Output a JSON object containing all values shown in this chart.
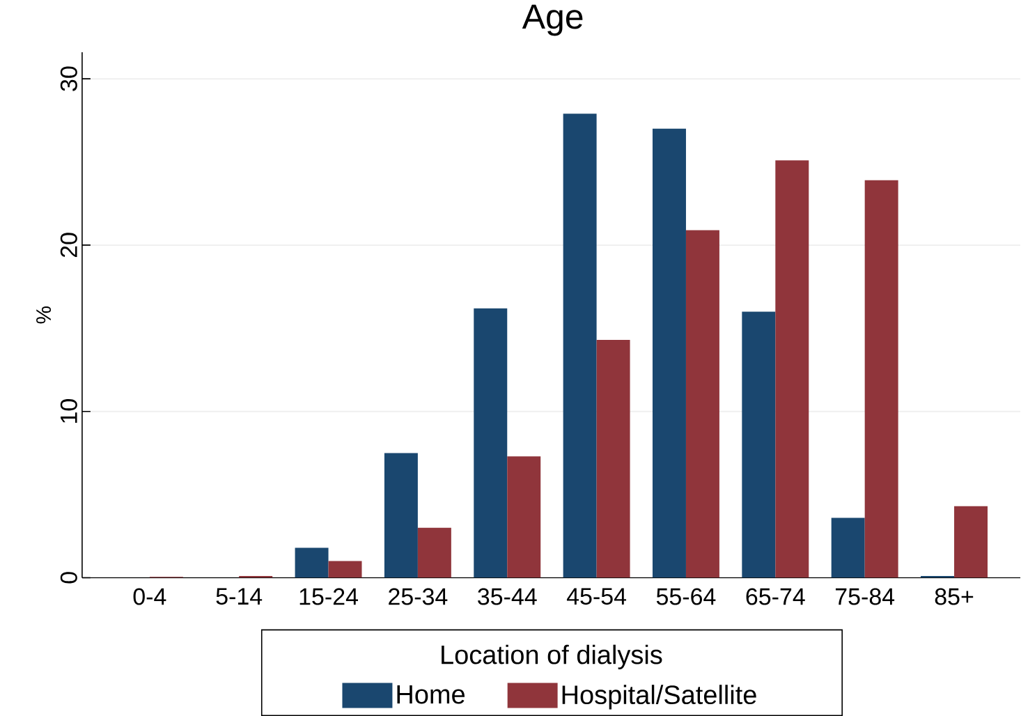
{
  "chart_data": {
    "type": "bar",
    "title": "Age",
    "ylabel": "%",
    "legend_title": "Location of dialysis",
    "categories": [
      "0-4",
      "5-14",
      "15-24",
      "25-34",
      "35-44",
      "45-54",
      "55-64",
      "65-74",
      "75-84",
      "85+"
    ],
    "series": [
      {
        "name": "Home",
        "color": "#1a476f",
        "values": [
          0,
          0,
          1.8,
          7.5,
          16.2,
          27.9,
          27.0,
          16.0,
          3.6,
          0.1
        ]
      },
      {
        "name": "Hospital/Satellite",
        "color": "#90353b",
        "values": [
          0.05,
          0.1,
          1.0,
          3.0,
          7.3,
          14.3,
          20.9,
          25.1,
          23.9,
          4.3
        ]
      }
    ],
    "ylim": [
      0,
      31.6
    ],
    "yticks": [
      0,
      10,
      20,
      30
    ],
    "grid": "y",
    "legend": "bottom"
  }
}
